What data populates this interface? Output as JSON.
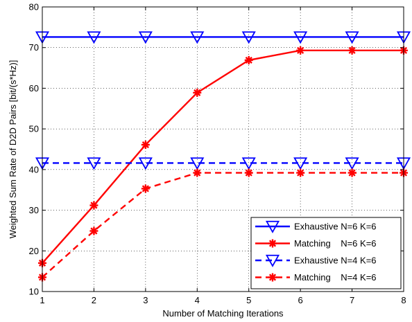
{
  "chart_data": {
    "type": "line",
    "xlabel": "Number of Matching Iterations",
    "ylabel": "Weighted Sum Rate of D2D Pairs [bit/(s*Hz)]",
    "xlim": [
      1,
      8
    ],
    "ylim": [
      10,
      80
    ],
    "xticks": [
      1,
      2,
      3,
      4,
      5,
      6,
      7,
      8
    ],
    "yticks": [
      10,
      20,
      30,
      40,
      50,
      60,
      70,
      80
    ],
    "grid": true,
    "legend_position": "bottom-right",
    "x": [
      1,
      2,
      3,
      4,
      5,
      6,
      7,
      8
    ],
    "series": [
      {
        "name": "Exhaustive N=6 K=6",
        "values": [
          72.6,
          72.6,
          72.6,
          72.6,
          72.6,
          72.6,
          72.6,
          72.6
        ],
        "color": "#0000ff",
        "line_style": "solid",
        "marker": "triangle-down"
      },
      {
        "name": "Matching    N=6 K=6",
        "values": [
          17.0,
          31.2,
          46.1,
          58.9,
          66.9,
          69.3,
          69.3,
          69.3
        ],
        "color": "#ff0000",
        "line_style": "solid",
        "marker": "asterisk"
      },
      {
        "name": "Exhaustive N=4 K=6",
        "values": [
          41.6,
          41.6,
          41.6,
          41.6,
          41.6,
          41.6,
          41.6,
          41.6
        ],
        "color": "#0000ff",
        "line_style": "dashed",
        "marker": "triangle-down"
      },
      {
        "name": "Matching    N=4 K=6",
        "values": [
          13.5,
          24.9,
          35.3,
          39.2,
          39.2,
          39.2,
          39.2,
          39.2
        ],
        "color": "#ff0000",
        "line_style": "dashed",
        "marker": "asterisk"
      }
    ]
  }
}
